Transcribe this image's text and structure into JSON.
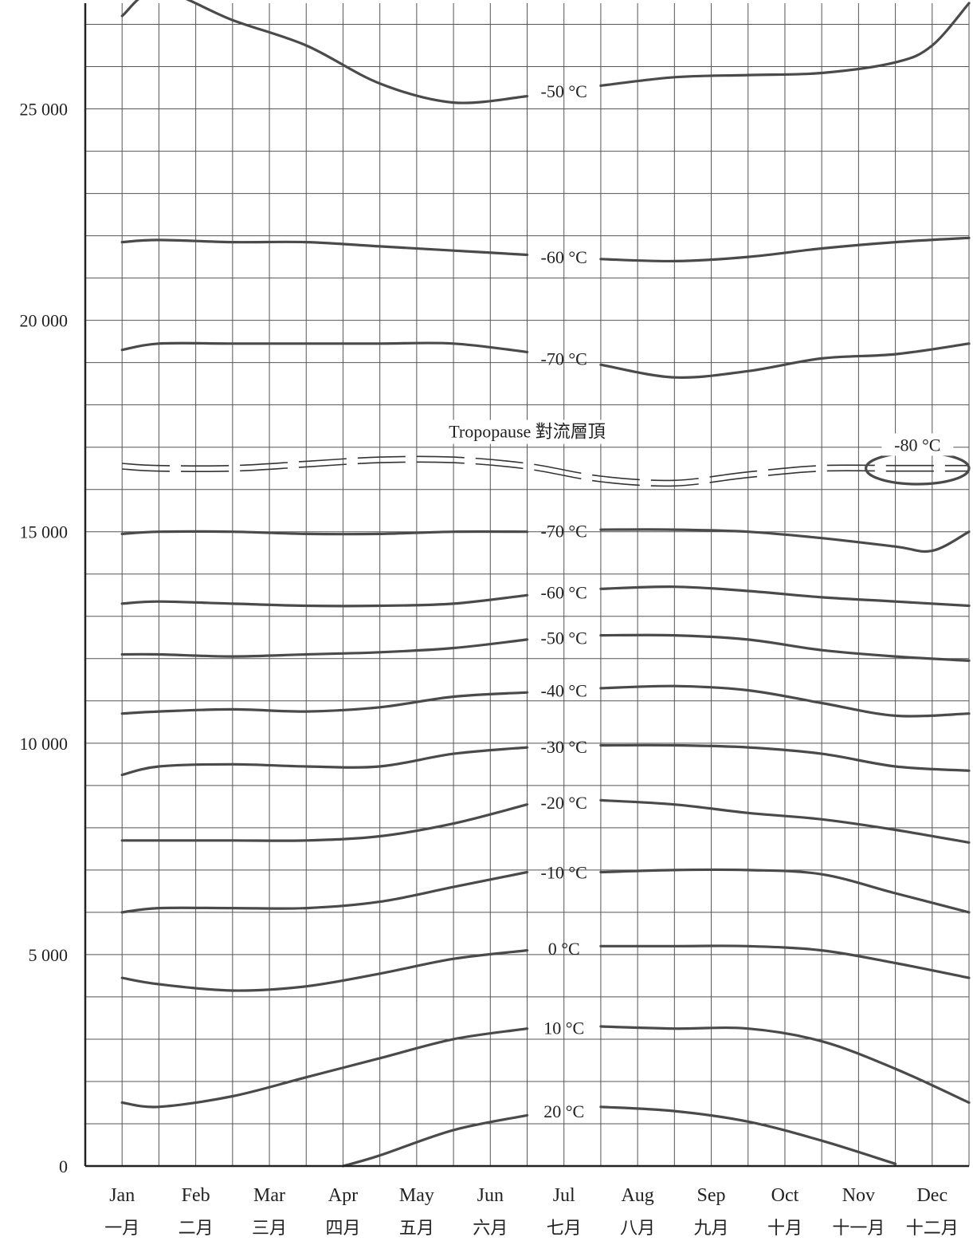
{
  "chart_data": {
    "type": "line",
    "title": "",
    "xlabel": "",
    "ylabel": "",
    "ylim": [
      0,
      27500
    ],
    "y_ticks": [
      {
        "value": 0,
        "label": "0"
      },
      {
        "value": 5000,
        "label": "5 000"
      },
      {
        "value": 10000,
        "label": "10 000"
      },
      {
        "value": 15000,
        "label": "15 000"
      },
      {
        "value": 20000,
        "label": "20 000"
      },
      {
        "value": 25000,
        "label": "25 000"
      }
    ],
    "months": [
      {
        "en": "Jan",
        "zh": "一月"
      },
      {
        "en": "Feb",
        "zh": "二月"
      },
      {
        "en": "Mar",
        "zh": "三月"
      },
      {
        "en": "Apr",
        "zh": "四月"
      },
      {
        "en": "May",
        "zh": "五月"
      },
      {
        "en": "Jun",
        "zh": "六月"
      },
      {
        "en": "Jul",
        "zh": "七月"
      },
      {
        "en": "Aug",
        "zh": "八月"
      },
      {
        "en": "Sep",
        "zh": "九月"
      },
      {
        "en": "Oct",
        "zh": "十月"
      },
      {
        "en": "Nov",
        "zh": "十一月"
      },
      {
        "en": "Dec",
        "zh": "十二月"
      }
    ],
    "grid": true,
    "isotherms": [
      {
        "label": "-50 °C",
        "group": "stratosphere",
        "points": [
          [
            0.5,
            27200
          ],
          [
            1.0,
            27800
          ],
          [
            2.0,
            27100
          ],
          [
            3.0,
            26500
          ],
          [
            4.0,
            25600
          ],
          [
            5.0,
            25150
          ],
          [
            6.0,
            25300
          ],
          [
            7.0,
            25550
          ],
          [
            8.0,
            25750
          ],
          [
            9.0,
            25800
          ],
          [
            10.0,
            25850
          ],
          [
            11.0,
            26100
          ],
          [
            11.5,
            26500
          ],
          [
            12.0,
            27500
          ]
        ]
      },
      {
        "label": "-60 °C",
        "group": "stratosphere",
        "points": [
          [
            0.5,
            21850
          ],
          [
            1.0,
            21900
          ],
          [
            2.0,
            21850
          ],
          [
            3.0,
            21850
          ],
          [
            4.0,
            21750
          ],
          [
            5.0,
            21650
          ],
          [
            6.0,
            21550
          ],
          [
            7.0,
            21450
          ],
          [
            8.0,
            21400
          ],
          [
            9.0,
            21500
          ],
          [
            10.0,
            21700
          ],
          [
            11.0,
            21850
          ],
          [
            12.0,
            21950
          ]
        ]
      },
      {
        "label": "-70 °C",
        "group": "stratosphere",
        "points": [
          [
            0.5,
            19300
          ],
          [
            1.0,
            19450
          ],
          [
            2.0,
            19450
          ],
          [
            3.0,
            19450
          ],
          [
            4.0,
            19450
          ],
          [
            5.0,
            19450
          ],
          [
            6.0,
            19250
          ],
          [
            7.0,
            18950
          ],
          [
            8.0,
            18650
          ],
          [
            9.0,
            18800
          ],
          [
            10.0,
            19100
          ],
          [
            11.0,
            19200
          ],
          [
            12.0,
            19450
          ]
        ]
      },
      {
        "label": "-70 °C",
        "group": "troposphere",
        "points": [
          [
            0.5,
            14950
          ],
          [
            1.0,
            15000
          ],
          [
            2.0,
            15000
          ],
          [
            3.0,
            14950
          ],
          [
            4.0,
            14950
          ],
          [
            5.0,
            15000
          ],
          [
            6.0,
            15000
          ],
          [
            7.0,
            15050
          ],
          [
            8.0,
            15050
          ],
          [
            9.0,
            15000
          ],
          [
            10.0,
            14850
          ],
          [
            11.0,
            14650
          ],
          [
            11.5,
            14550
          ],
          [
            12.0,
            15000
          ]
        ]
      },
      {
        "label": "-60 °C",
        "group": "troposphere",
        "points": [
          [
            0.5,
            13300
          ],
          [
            1.0,
            13350
          ],
          [
            2.0,
            13300
          ],
          [
            3.0,
            13250
          ],
          [
            4.0,
            13250
          ],
          [
            5.0,
            13300
          ],
          [
            6.0,
            13500
          ],
          [
            7.0,
            13650
          ],
          [
            8.0,
            13700
          ],
          [
            9.0,
            13600
          ],
          [
            10.0,
            13450
          ],
          [
            11.0,
            13350
          ],
          [
            12.0,
            13250
          ]
        ]
      },
      {
        "label": "-50 °C",
        "group": "troposphere",
        "points": [
          [
            0.5,
            12100
          ],
          [
            1.0,
            12100
          ],
          [
            2.0,
            12050
          ],
          [
            3.0,
            12100
          ],
          [
            4.0,
            12150
          ],
          [
            5.0,
            12250
          ],
          [
            6.0,
            12450
          ],
          [
            7.0,
            12550
          ],
          [
            8.0,
            12550
          ],
          [
            9.0,
            12450
          ],
          [
            10.0,
            12200
          ],
          [
            11.0,
            12050
          ],
          [
            12.0,
            11950
          ]
        ]
      },
      {
        "label": "-40 °C",
        "group": "troposphere",
        "points": [
          [
            0.5,
            10700
          ],
          [
            1.0,
            10750
          ],
          [
            2.0,
            10800
          ],
          [
            3.0,
            10750
          ],
          [
            4.0,
            10850
          ],
          [
            5.0,
            11100
          ],
          [
            6.0,
            11200
          ],
          [
            7.0,
            11300
          ],
          [
            8.0,
            11350
          ],
          [
            9.0,
            11250
          ],
          [
            10.0,
            10950
          ],
          [
            11.0,
            10650
          ],
          [
            12.0,
            10700
          ]
        ]
      },
      {
        "label": "-30 °C",
        "group": "troposphere",
        "points": [
          [
            0.5,
            9250
          ],
          [
            1.0,
            9450
          ],
          [
            2.0,
            9500
          ],
          [
            3.0,
            9450
          ],
          [
            4.0,
            9450
          ],
          [
            5.0,
            9750
          ],
          [
            6.0,
            9900
          ],
          [
            7.0,
            9950
          ],
          [
            8.0,
            9950
          ],
          [
            9.0,
            9900
          ],
          [
            10.0,
            9750
          ],
          [
            11.0,
            9450
          ],
          [
            12.0,
            9350
          ]
        ]
      },
      {
        "label": "-20 °C",
        "group": "troposphere",
        "points": [
          [
            0.5,
            7700
          ],
          [
            1.0,
            7700
          ],
          [
            2.0,
            7700
          ],
          [
            3.0,
            7700
          ],
          [
            4.0,
            7800
          ],
          [
            5.0,
            8100
          ],
          [
            6.0,
            8550
          ],
          [
            7.0,
            8650
          ],
          [
            8.0,
            8550
          ],
          [
            9.0,
            8350
          ],
          [
            10.0,
            8200
          ],
          [
            11.0,
            7950
          ],
          [
            12.0,
            7650
          ]
        ]
      },
      {
        "label": "-10 °C",
        "group": "troposphere",
        "points": [
          [
            0.5,
            6000
          ],
          [
            1.0,
            6100
          ],
          [
            2.0,
            6100
          ],
          [
            3.0,
            6100
          ],
          [
            4.0,
            6250
          ],
          [
            5.0,
            6600
          ],
          [
            6.0,
            6950
          ],
          [
            7.0,
            6950
          ],
          [
            8.0,
            7000
          ],
          [
            9.0,
            7000
          ],
          [
            10.0,
            6900
          ],
          [
            11.0,
            6450
          ],
          [
            12.0,
            6000
          ]
        ]
      },
      {
        "label": "0 °C",
        "group": "troposphere",
        "points": [
          [
            0.5,
            4450
          ],
          [
            1.0,
            4300
          ],
          [
            2.0,
            4150
          ],
          [
            3.0,
            4250
          ],
          [
            4.0,
            4550
          ],
          [
            5.0,
            4900
          ],
          [
            6.0,
            5100
          ],
          [
            7.0,
            5200
          ],
          [
            8.0,
            5200
          ],
          [
            9.0,
            5200
          ],
          [
            10.0,
            5100
          ],
          [
            11.0,
            4800
          ],
          [
            12.0,
            4450
          ]
        ]
      },
      {
        "label": "10 °C",
        "group": "troposphere",
        "points": [
          [
            0.5,
            1500
          ],
          [
            1.0,
            1400
          ],
          [
            2.0,
            1650
          ],
          [
            3.0,
            2100
          ],
          [
            4.0,
            2550
          ],
          [
            5.0,
            3000
          ],
          [
            6.0,
            3250
          ],
          [
            7.0,
            3300
          ],
          [
            8.0,
            3250
          ],
          [
            9.0,
            3250
          ],
          [
            10.0,
            2950
          ],
          [
            11.0,
            2300
          ],
          [
            12.0,
            1500
          ]
        ]
      },
      {
        "label": "20 °C",
        "group": "troposphere",
        "points": [
          [
            3.5,
            0
          ],
          [
            4.0,
            250
          ],
          [
            5.0,
            850
          ],
          [
            6.0,
            1200
          ],
          [
            7.0,
            1400
          ],
          [
            8.0,
            1300
          ],
          [
            9.0,
            1050
          ],
          [
            10.0,
            600
          ],
          [
            11.0,
            50
          ]
        ]
      }
    ],
    "tropopause": {
      "label": "Tropopause 對流層頂",
      "points": [
        [
          0.5,
          16550
        ],
        [
          1.0,
          16500
        ],
        [
          2.0,
          16500
        ],
        [
          3.0,
          16600
        ],
        [
          4.0,
          16700
        ],
        [
          5.0,
          16700
        ],
        [
          6.0,
          16550
        ],
        [
          7.0,
          16250
        ],
        [
          8.0,
          16150
        ],
        [
          9.0,
          16350
        ],
        [
          10.0,
          16500
        ],
        [
          11.0,
          16500
        ],
        [
          12.0,
          16500
        ]
      ]
    },
    "closed_isotherm": {
      "label": "-80 °C",
      "center_month": 11.3,
      "center_value": 16500,
      "width_months": 1.4,
      "height_value": 520
    }
  }
}
